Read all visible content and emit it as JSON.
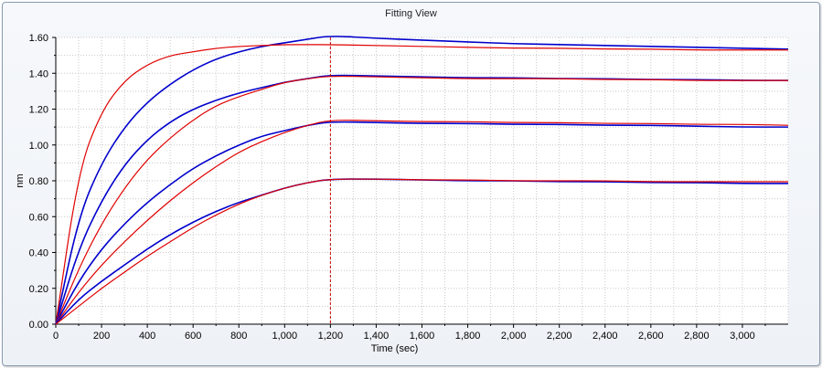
{
  "window": {
    "title": "Fitting View"
  },
  "chart_data": {
    "type": "line",
    "title": "Fitting View",
    "xlabel": "Time (sec)",
    "ylabel": "nm",
    "xlim": [
      0,
      3200
    ],
    "ylim": [
      0,
      1.6
    ],
    "x_ticks": [
      0,
      200,
      400,
      600,
      800,
      1000,
      1200,
      1400,
      1600,
      1800,
      2000,
      2200,
      2400,
      2600,
      2800,
      3000
    ],
    "x_tick_labels": [
      "0",
      "200",
      "400",
      "600",
      "800",
      "1,000",
      "1,200",
      "1,400",
      "1,600",
      "1,800",
      "2,000",
      "2,200",
      "2,400",
      "2,600",
      "2,800",
      "3,000"
    ],
    "y_ticks": [
      0,
      0.2,
      0.4,
      0.6,
      0.8,
      1.0,
      1.2,
      1.4,
      1.6
    ],
    "y_tick_labels": [
      "0.00",
      "0.20",
      "0.40",
      "0.60",
      "0.80",
      "1.00",
      "1.20",
      "1.40",
      "1.60"
    ],
    "grid": true,
    "vertical_marker_x": 1200,
    "colors": {
      "measured": "#0000cc",
      "fit": "#e00000",
      "marker": "#cc0000",
      "grid": "#c8c8c8"
    },
    "series": [
      {
        "kind": "measured",
        "x": [
          0,
          100,
          200,
          300,
          400,
          500,
          600,
          700,
          800,
          900,
          1000,
          1100,
          1200,
          1400,
          1600,
          1800,
          2000,
          2200,
          2400,
          2600,
          2800,
          3000,
          3200
        ],
        "values": [
          0,
          0.6,
          0.9,
          1.1,
          1.24,
          1.34,
          1.42,
          1.48,
          1.52,
          1.55,
          1.57,
          1.59,
          1.61,
          1.595,
          1.585,
          1.575,
          1.565,
          1.56,
          1.555,
          1.55,
          1.545,
          1.54,
          1.535
        ]
      },
      {
        "kind": "fit",
        "x": [
          0,
          100,
          200,
          300,
          400,
          500,
          600,
          700,
          800,
          900,
          1000,
          1100,
          1200,
          1400,
          1600,
          1800,
          2000,
          2200,
          2400,
          2600,
          2800,
          3000,
          3200
        ],
        "values": [
          0,
          0.86,
          1.19,
          1.36,
          1.45,
          1.5,
          1.52,
          1.54,
          1.55,
          1.555,
          1.56,
          1.56,
          1.56,
          1.555,
          1.55,
          1.545,
          1.54,
          1.54,
          1.535,
          1.535,
          1.53,
          1.53,
          1.53
        ]
      },
      {
        "kind": "measured",
        "x": [
          0,
          100,
          200,
          300,
          400,
          500,
          600,
          700,
          800,
          900,
          1000,
          1100,
          1200,
          1400,
          1600,
          1800,
          2000,
          2200,
          2400,
          2600,
          2800,
          3000,
          3200
        ],
        "values": [
          0,
          0.42,
          0.69,
          0.89,
          1.03,
          1.13,
          1.2,
          1.25,
          1.29,
          1.32,
          1.35,
          1.37,
          1.39,
          1.385,
          1.38,
          1.375,
          1.375,
          1.37,
          1.37,
          1.365,
          1.365,
          1.36,
          1.36
        ]
      },
      {
        "kind": "fit",
        "x": [
          0,
          100,
          200,
          300,
          400,
          500,
          600,
          700,
          800,
          900,
          1000,
          1100,
          1200,
          1400,
          1600,
          1800,
          2000,
          2200,
          2400,
          2600,
          2800,
          3000,
          3200
        ],
        "values": [
          0,
          0.31,
          0.56,
          0.76,
          0.92,
          1.04,
          1.14,
          1.22,
          1.27,
          1.31,
          1.35,
          1.37,
          1.385,
          1.38,
          1.375,
          1.37,
          1.37,
          1.37,
          1.365,
          1.365,
          1.36,
          1.36,
          1.36
        ]
      },
      {
        "kind": "measured",
        "x": [
          0,
          100,
          200,
          300,
          400,
          500,
          600,
          700,
          800,
          900,
          1000,
          1100,
          1200,
          1400,
          1600,
          1800,
          2000,
          2200,
          2400,
          2600,
          2800,
          3000,
          3200
        ],
        "values": [
          0,
          0.24,
          0.42,
          0.56,
          0.68,
          0.78,
          0.87,
          0.94,
          1.0,
          1.05,
          1.08,
          1.11,
          1.13,
          1.125,
          1.12,
          1.12,
          1.115,
          1.115,
          1.11,
          1.11,
          1.105,
          1.1,
          1.1
        ]
      },
      {
        "kind": "fit",
        "x": [
          0,
          100,
          200,
          300,
          400,
          500,
          600,
          700,
          800,
          900,
          1000,
          1100,
          1200,
          1400,
          1600,
          1800,
          2000,
          2200,
          2400,
          2600,
          2800,
          3000,
          3200
        ],
        "values": [
          0,
          0.18,
          0.33,
          0.46,
          0.58,
          0.69,
          0.79,
          0.88,
          0.96,
          1.02,
          1.07,
          1.11,
          1.14,
          1.135,
          1.13,
          1.13,
          1.125,
          1.125,
          1.12,
          1.12,
          1.115,
          1.115,
          1.11
        ]
      },
      {
        "kind": "measured",
        "x": [
          0,
          100,
          200,
          300,
          400,
          500,
          600,
          700,
          800,
          900,
          1000,
          1100,
          1200,
          1400,
          1600,
          1800,
          2000,
          2200,
          2400,
          2600,
          2800,
          3000,
          3200
        ],
        "values": [
          0,
          0.14,
          0.24,
          0.33,
          0.42,
          0.5,
          0.57,
          0.63,
          0.68,
          0.72,
          0.76,
          0.79,
          0.81,
          0.81,
          0.805,
          0.8,
          0.8,
          0.795,
          0.795,
          0.79,
          0.79,
          0.785,
          0.785
        ]
      },
      {
        "kind": "fit",
        "x": [
          0,
          100,
          200,
          300,
          400,
          500,
          600,
          700,
          800,
          900,
          1000,
          1100,
          1200,
          1400,
          1600,
          1800,
          2000,
          2200,
          2400,
          2600,
          2800,
          3000,
          3200
        ],
        "values": [
          0,
          0.1,
          0.2,
          0.29,
          0.38,
          0.46,
          0.54,
          0.61,
          0.67,
          0.72,
          0.76,
          0.79,
          0.81,
          0.81,
          0.805,
          0.805,
          0.8,
          0.8,
          0.8,
          0.795,
          0.795,
          0.795,
          0.795
        ]
      }
    ]
  }
}
